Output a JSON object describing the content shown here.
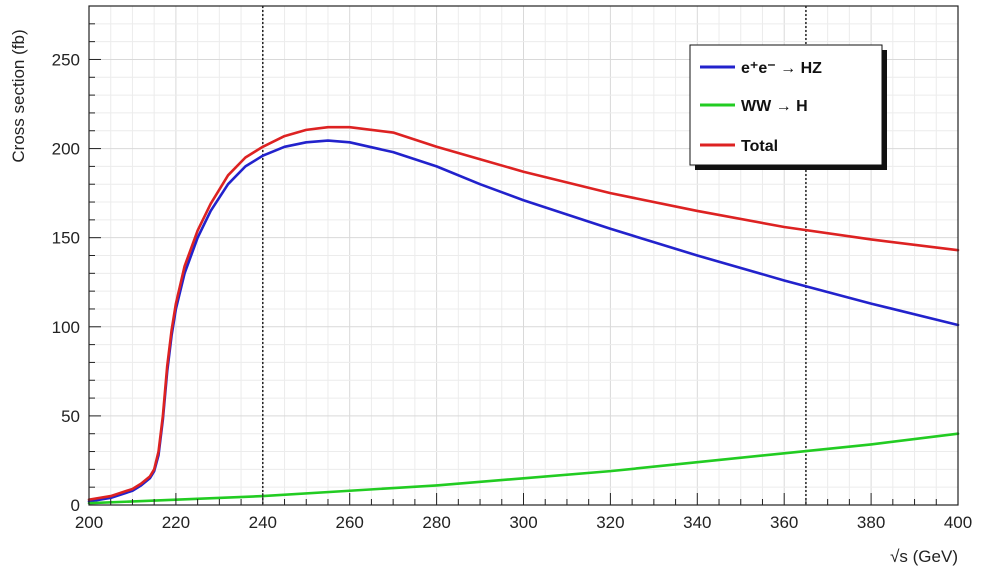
{
  "chart_data": {
    "type": "line",
    "title": "",
    "xlabel": "√s (GeV)",
    "ylabel": "Cross section (fb)",
    "xlim": [
      200,
      400
    ],
    "ylim": [
      0,
      280
    ],
    "xticks": [
      200,
      220,
      240,
      260,
      280,
      300,
      320,
      340,
      360,
      380,
      400
    ],
    "yticks": [
      0,
      50,
      100,
      150,
      200,
      250
    ],
    "grid": true,
    "legend_position": "top-right",
    "vertical_lines": [
      240,
      365
    ],
    "series": [
      {
        "name": "e⁺e⁻ → HZ",
        "color": "#2222cc",
        "x": [
          200,
          205,
          210,
          212,
          214,
          215,
          216,
          217,
          218,
          219,
          220,
          222,
          225,
          228,
          232,
          236,
          240,
          245,
          250,
          255,
          260,
          270,
          280,
          290,
          300,
          320,
          340,
          360,
          380,
          400
        ],
        "y": [
          2,
          4,
          8,
          11,
          15,
          19,
          28,
          48,
          75,
          95,
          110,
          130,
          150,
          165,
          180,
          190,
          196,
          201,
          203.5,
          204.5,
          203.5,
          198,
          190,
          180,
          171,
          155,
          140,
          126,
          113,
          101
        ]
      },
      {
        "name": "WW → H",
        "color": "#22cc22",
        "x": [
          200,
          220,
          240,
          260,
          280,
          300,
          320,
          340,
          360,
          380,
          400
        ],
        "y": [
          1,
          3,
          5,
          8,
          11,
          15,
          19,
          24,
          29,
          34,
          40
        ]
      },
      {
        "name": "Total",
        "color": "#dd2222",
        "x": [
          200,
          205,
          210,
          212,
          214,
          215,
          216,
          217,
          218,
          219,
          220,
          222,
          225,
          228,
          232,
          236,
          240,
          245,
          250,
          255,
          260,
          270,
          280,
          290,
          300,
          320,
          340,
          360,
          380,
          400
        ],
        "y": [
          3,
          5,
          9,
          12,
          16,
          20,
          30,
          50,
          78,
          98,
          113,
          134,
          154,
          169,
          185,
          195,
          201,
          207,
          210.5,
          212,
          212,
          209,
          201,
          194,
          187,
          175,
          165,
          156,
          149,
          143
        ]
      }
    ]
  }
}
